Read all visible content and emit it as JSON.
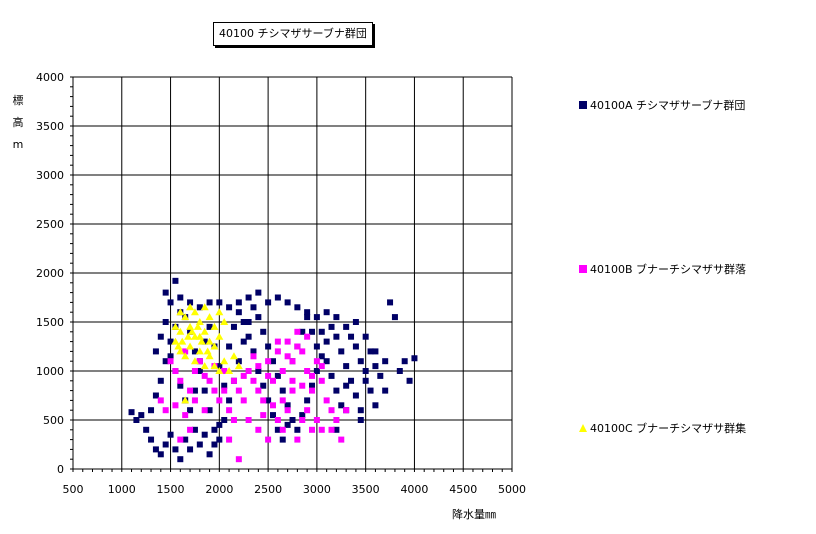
{
  "chart_data": {
    "type": "scatter",
    "title": "40100 チシマザサーブナ群団",
    "xlabel": "降水量㎜",
    "ylabel_chars": [
      "標",
      "高",
      "m"
    ],
    "xlim": [
      500,
      5000
    ],
    "ylim": [
      0,
      4000
    ],
    "xticks": [
      "500",
      "1000",
      "1500",
      "2000",
      "2500",
      "3000",
      "3500",
      "4000",
      "4500",
      "5000"
    ],
    "yticks": [
      "0",
      "500",
      "1000",
      "1500",
      "2000",
      "2500",
      "3000",
      "3500",
      "4000"
    ],
    "grid": true,
    "legend_position": "right",
    "series": [
      {
        "name": "40100A チシマザサーブナ群団",
        "color": "#000066",
        "marker": "square",
        "points": [
          [
            1300,
            600
          ],
          [
            1350,
            750
          ],
          [
            1400,
            900
          ],
          [
            1450,
            1100
          ],
          [
            1500,
            1300
          ],
          [
            1550,
            1450
          ],
          [
            1600,
            1600
          ],
          [
            1650,
            1550
          ],
          [
            1700,
            1400
          ],
          [
            1750,
            1200
          ],
          [
            1800,
            1000
          ],
          [
            1850,
            800
          ],
          [
            1900,
            600
          ],
          [
            1950,
            400
          ],
          [
            2000,
            300
          ],
          [
            2050,
            500
          ],
          [
            2100,
            700
          ],
          [
            2150,
            900
          ],
          [
            2200,
            1100
          ],
          [
            2250,
            1300
          ],
          [
            2300,
            1500
          ],
          [
            2350,
            1650
          ],
          [
            2400,
            1550
          ],
          [
            2450,
            1400
          ],
          [
            2500,
            1250
          ],
          [
            2550,
            1100
          ],
          [
            2600,
            950
          ],
          [
            2650,
            800
          ],
          [
            2700,
            650
          ],
          [
            2750,
            500
          ],
          [
            2800,
            400
          ],
          [
            2850,
            550
          ],
          [
            2900,
            700
          ],
          [
            2950,
            850
          ],
          [
            3000,
            1000
          ],
          [
            3050,
            1150
          ],
          [
            3100,
            1300
          ],
          [
            3150,
            1450
          ],
          [
            3200,
            1350
          ],
          [
            3250,
            1200
          ],
          [
            3300,
            1050
          ],
          [
            3350,
            900
          ],
          [
            3400,
            750
          ],
          [
            3450,
            600
          ],
          [
            3500,
            900
          ],
          [
            3550,
            1200
          ],
          [
            3600,
            1050
          ],
          [
            3650,
            950
          ],
          [
            3700,
            800
          ],
          [
            1250,
            400
          ],
          [
            1300,
            300
          ],
          [
            1350,
            200
          ],
          [
            1400,
            150
          ],
          [
            1450,
            250
          ],
          [
            1500,
            350
          ],
          [
            1550,
            200
          ],
          [
            1600,
            100
          ],
          [
            1650,
            300
          ],
          [
            1700,
            200
          ],
          [
            1750,
            400
          ],
          [
            1800,
            250
          ],
          [
            1850,
            350
          ],
          [
            1900,
            150
          ],
          [
            1950,
            250
          ],
          [
            2000,
            450
          ],
          [
            1200,
            550
          ],
          [
            1150,
            500
          ],
          [
            1100,
            580
          ],
          [
            1450,
            1800
          ],
          [
            1550,
            1920
          ],
          [
            1500,
            1700
          ],
          [
            1600,
            1750
          ],
          [
            1700,
            1700
          ],
          [
            1800,
            1650
          ],
          [
            1900,
            1700
          ],
          [
            2000,
            1700
          ],
          [
            2100,
            1650
          ],
          [
            2200,
            1700
          ],
          [
            2300,
            1750
          ],
          [
            2400,
            1800
          ],
          [
            2500,
            1700
          ],
          [
            2600,
            1750
          ],
          [
            2700,
            1700
          ],
          [
            2800,
            1650
          ],
          [
            2900,
            1600
          ],
          [
            3000,
            1550
          ],
          [
            3100,
            1600
          ],
          [
            3200,
            1550
          ],
          [
            3300,
            1450
          ],
          [
            3400,
            1500
          ],
          [
            3500,
            1350
          ],
          [
            3600,
            1200
          ],
          [
            3700,
            1100
          ],
          [
            3800,
            1550
          ],
          [
            3750,
            1700
          ],
          [
            3900,
            1100
          ],
          [
            4000,
            1130
          ],
          [
            3850,
            1000
          ],
          [
            3950,
            900
          ],
          [
            3450,
            500
          ],
          [
            3300,
            600
          ],
          [
            3200,
            400
          ],
          [
            1350,
            1200
          ],
          [
            1400,
            1350
          ],
          [
            1450,
            1500
          ],
          [
            1500,
            1150
          ],
          [
            1550,
            1000
          ],
          [
            1600,
            850
          ],
          [
            1650,
            700
          ],
          [
            1700,
            600
          ],
          [
            1750,
            800
          ],
          [
            1800,
            1100
          ],
          [
            1850,
            1300
          ],
          [
            1900,
            1450
          ],
          [
            1950,
            1250
          ],
          [
            2000,
            1050
          ],
          [
            2050,
            850
          ],
          [
            2100,
            1250
          ],
          [
            2150,
            1450
          ],
          [
            2200,
            1600
          ],
          [
            2250,
            1500
          ],
          [
            2300,
            1350
          ],
          [
            2350,
            1200
          ],
          [
            2400,
            1000
          ],
          [
            2450,
            850
          ],
          [
            2500,
            700
          ],
          [
            2550,
            550
          ],
          [
            2600,
            400
          ],
          [
            2650,
            300
          ],
          [
            2700,
            450
          ],
          [
            2750,
            1100
          ],
          [
            2800,
            1250
          ],
          [
            2850,
            1400
          ],
          [
            2900,
            1550
          ],
          [
            2950,
            1400
          ],
          [
            3000,
            1250
          ],
          [
            3050,
            1400
          ],
          [
            3100,
            1100
          ],
          [
            3150,
            950
          ],
          [
            3200,
            800
          ],
          [
            3250,
            650
          ],
          [
            3300,
            850
          ],
          [
            3350,
            1350
          ],
          [
            3400,
            1250
          ],
          [
            3450,
            1100
          ],
          [
            3500,
            1000
          ],
          [
            3550,
            800
          ],
          [
            3600,
            650
          ]
        ]
      },
      {
        "name": "40100B ブナーチシマザサ群落",
        "color": "#ff00ff",
        "marker": "square",
        "points": [
          [
            1500,
            1100
          ],
          [
            1550,
            1000
          ],
          [
            1600,
            900
          ],
          [
            1650,
            1200
          ],
          [
            1700,
            800
          ],
          [
            1750,
            700
          ],
          [
            1800,
            1100
          ],
          [
            1850,
            600
          ],
          [
            1900,
            900
          ],
          [
            1950,
            800
          ],
          [
            2000,
            700
          ],
          [
            2050,
            1000
          ],
          [
            2100,
            600
          ],
          [
            2150,
            500
          ],
          [
            2200,
            800
          ],
          [
            2250,
            700
          ],
          [
            2300,
            1000
          ],
          [
            2350,
            900
          ],
          [
            2400,
            800
          ],
          [
            2450,
            700
          ],
          [
            2500,
            1100
          ],
          [
            2550,
            900
          ],
          [
            2600,
            1200
          ],
          [
            2650,
            1000
          ],
          [
            2700,
            1300
          ],
          [
            2750,
            1100
          ],
          [
            2800,
            1400
          ],
          [
            2850,
            1200
          ],
          [
            2900,
            1000
          ],
          [
            2950,
            800
          ],
          [
            3000,
            1100
          ],
          [
            3050,
            900
          ],
          [
            3100,
            700
          ],
          [
            3150,
            600
          ],
          [
            3200,
            500
          ],
          [
            2600,
            500
          ],
          [
            2650,
            400
          ],
          [
            2700,
            600
          ],
          [
            2750,
            800
          ],
          [
            2800,
            300
          ],
          [
            2850,
            500
          ],
          [
            2900,
            600
          ],
          [
            2950,
            400
          ],
          [
            3000,
            500
          ],
          [
            3050,
            400
          ],
          [
            3150,
            400
          ],
          [
            3300,
            600
          ],
          [
            3250,
            300
          ],
          [
            2200,
            100
          ],
          [
            1600,
            300
          ],
          [
            1700,
            400
          ],
          [
            2100,
            300
          ],
          [
            2400,
            400
          ],
          [
            2500,
            300
          ],
          [
            1450,
            600
          ],
          [
            1400,
            700
          ],
          [
            1550,
            650
          ],
          [
            1650,
            550
          ],
          [
            2300,
            500
          ],
          [
            2450,
            550
          ],
          [
            2550,
            650
          ],
          [
            2650,
            700
          ],
          [
            2750,
            900
          ],
          [
            2850,
            850
          ],
          [
            2950,
            950
          ],
          [
            3050,
            1050
          ],
          [
            2600,
            1300
          ],
          [
            2700,
            1150
          ],
          [
            2800,
            1250
          ],
          [
            2900,
            1350
          ],
          [
            2500,
            950
          ],
          [
            2400,
            1050
          ],
          [
            2350,
            1150
          ],
          [
            2250,
            950
          ],
          [
            2150,
            900
          ],
          [
            2050,
            800
          ],
          [
            1950,
            1050
          ],
          [
            1850,
            950
          ],
          [
            1750,
            1000
          ]
        ]
      },
      {
        "name": "40100C ブナーチシマザサ群集",
        "color": "#ffff00",
        "marker": "triangle",
        "points": [
          [
            1550,
            1300
          ],
          [
            1600,
            1400
          ],
          [
            1650,
            1550
          ],
          [
            1700,
            1450
          ],
          [
            1750,
            1600
          ],
          [
            1800,
            1500
          ],
          [
            1850,
            1650
          ],
          [
            1900,
            1550
          ],
          [
            1950,
            1450
          ],
          [
            2000,
            1600
          ],
          [
            2050,
            1500
          ],
          [
            1600,
            1200
          ],
          [
            1650,
            1150
          ],
          [
            1700,
            1250
          ],
          [
            1750,
            1100
          ],
          [
            1800,
            1200
          ],
          [
            1850,
            1050
          ],
          [
            1900,
            1150
          ],
          [
            1950,
            1050
          ],
          [
            2000,
            1000
          ],
          [
            2050,
            1100
          ],
          [
            2100,
            1000
          ],
          [
            2150,
            1150
          ],
          [
            2200,
            1050
          ],
          [
            1650,
            700
          ],
          [
            1550,
            1450
          ],
          [
            1600,
            1600
          ],
          [
            1700,
            1650
          ],
          [
            1800,
            1350
          ],
          [
            1900,
            1300
          ],
          [
            2000,
            1350
          ],
          [
            1750,
            1350
          ],
          [
            1850,
            1400
          ],
          [
            1950,
            1250
          ],
          [
            1580,
            1250
          ],
          [
            1620,
            1300
          ],
          [
            1680,
            1350
          ],
          [
            1720,
            1400
          ],
          [
            1780,
            1450
          ],
          [
            1820,
            1300
          ],
          [
            1880,
            1200
          ]
        ]
      }
    ]
  }
}
